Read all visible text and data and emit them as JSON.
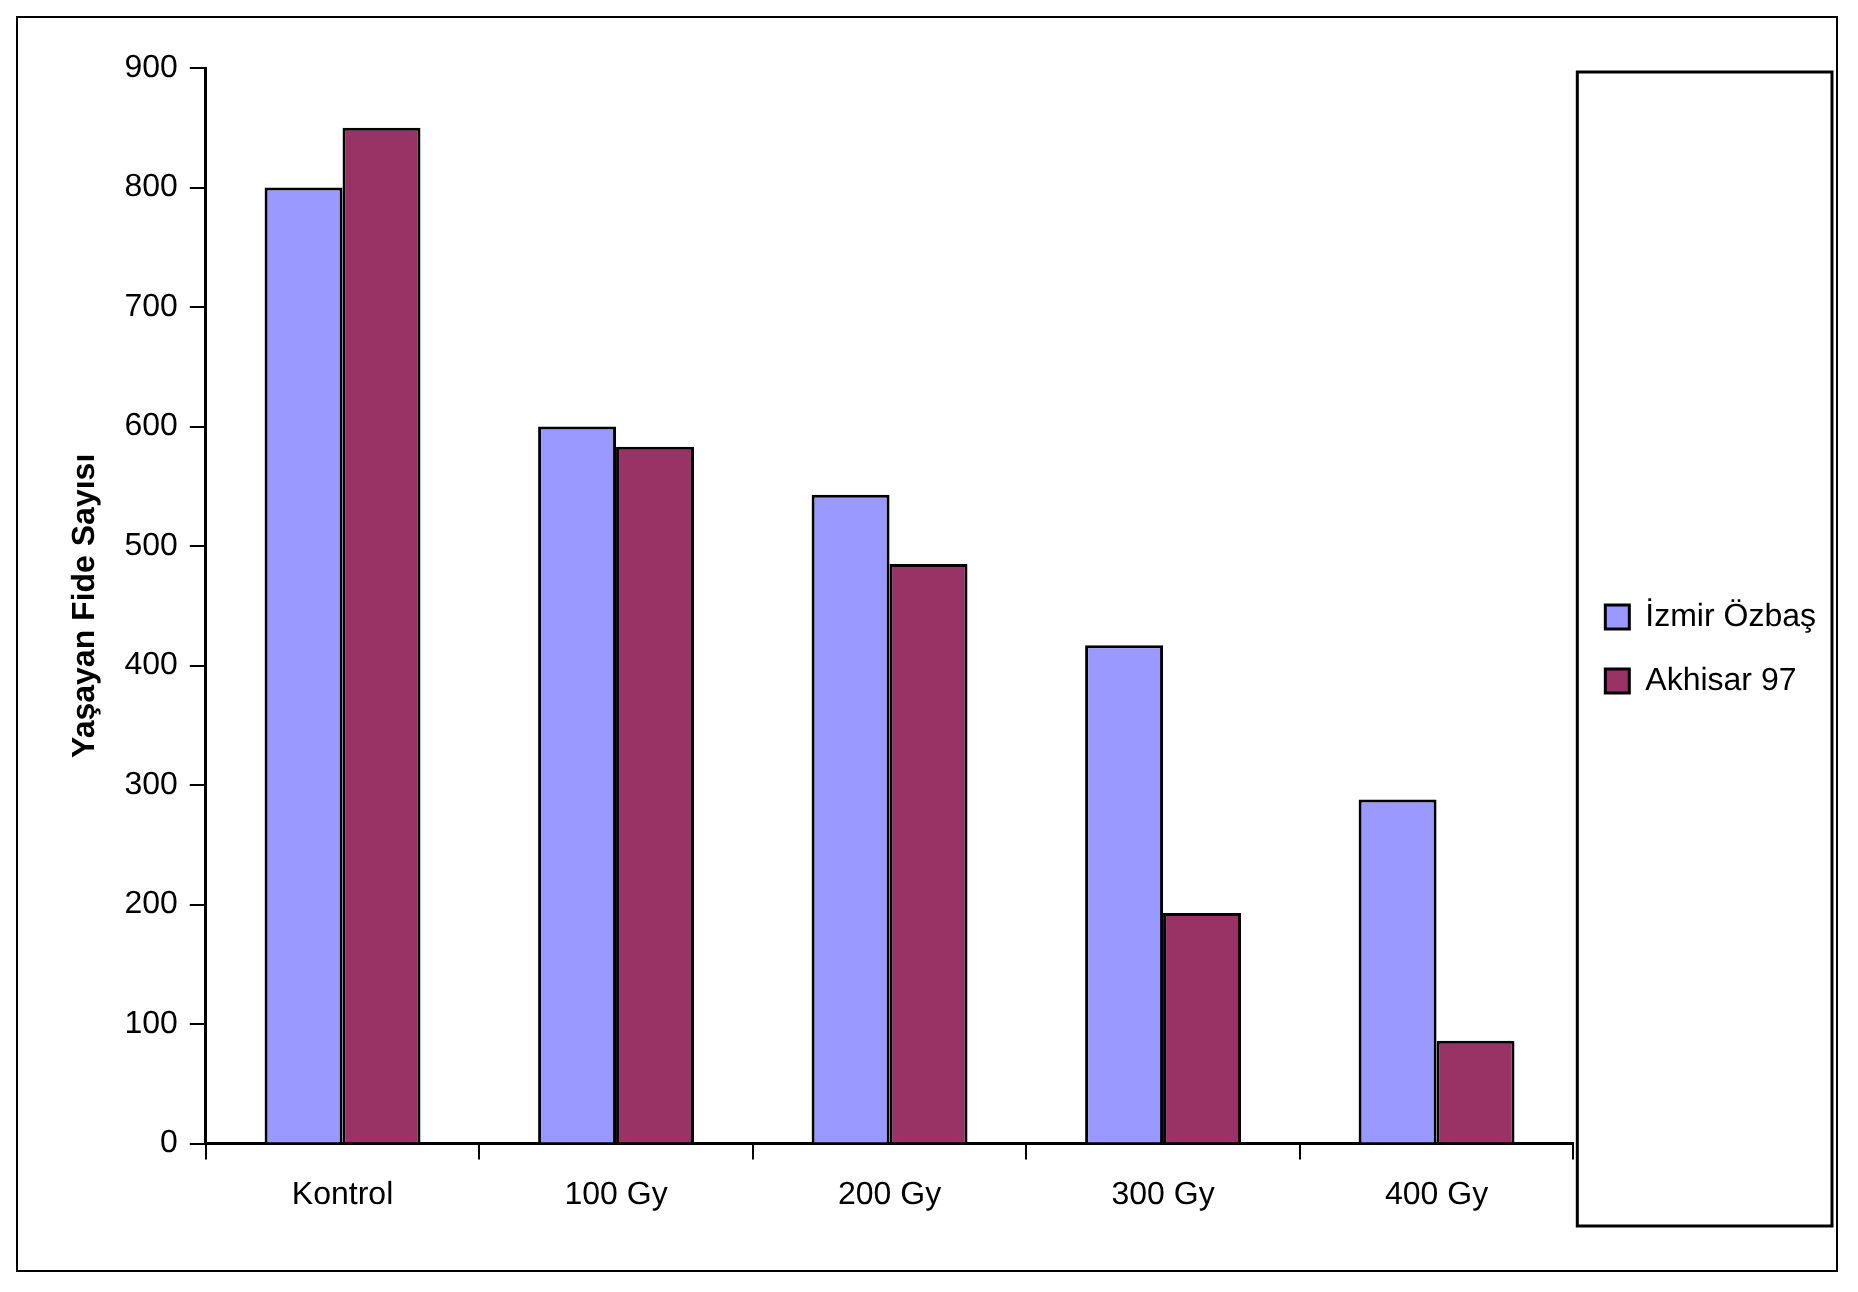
{
  "chart_data": {
    "type": "bar",
    "ylabel": "Yaşayan Fide Sayısı",
    "categories": [
      "Kontrol",
      "100 Gy",
      "200 Gy",
      "300 Gy",
      "400 Gy"
    ],
    "series": [
      {
        "name": "İzmir Özbaş",
        "color": "#9999ff",
        "values": [
          800,
          600,
          543,
          417,
          288
        ]
      },
      {
        "name": "Akhisar 97",
        "color": "#993366",
        "values": [
          850,
          583,
          485,
          193,
          86
        ]
      }
    ],
    "ylim": [
      0,
      900
    ],
    "yticks": [
      0,
      100,
      200,
      300,
      400,
      500,
      600,
      700,
      800,
      900
    ],
    "grid": false,
    "legend": "right"
  }
}
